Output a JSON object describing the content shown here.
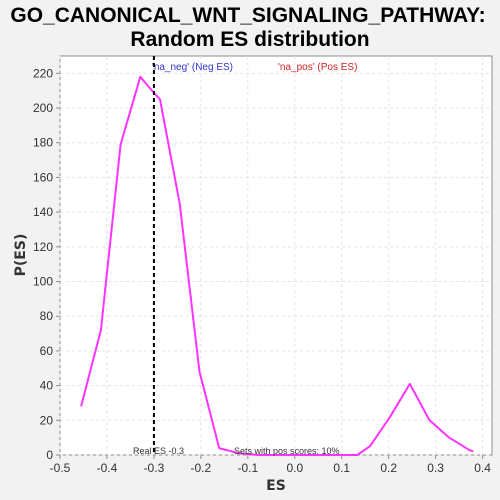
{
  "chart_data": {
    "type": "line",
    "title_lines": [
      "GO_CANONICAL_WNT_SIGNALING_PATHWAY:",
      "Random ES distribution"
    ],
    "xlabel": "ES",
    "ylabel": "P(ES)",
    "xlim": [
      -0.5,
      0.42
    ],
    "ylim": [
      0,
      230
    ],
    "xticks": [
      -0.5,
      -0.4,
      -0.3,
      -0.2,
      -0.1,
      0.0,
      0.1,
      0.2,
      0.3,
      0.4
    ],
    "xtick_labels": [
      "-0.5",
      "-0.4",
      "-0.3",
      "-0.2",
      "-0.1",
      "0.0",
      "0.1",
      "0.2",
      "0.3",
      "0.4"
    ],
    "yticks": [
      0,
      20,
      40,
      60,
      80,
      100,
      120,
      140,
      160,
      180,
      200,
      220
    ],
    "grid": true,
    "legend_position": "top-center",
    "legend": [
      {
        "label": "'na_neg' (Neg ES)",
        "color": "#3333cc"
      },
      {
        "label": "'na_pos' (Pos ES)",
        "color": "#cc2222"
      }
    ],
    "series": [
      {
        "color": "#ff33ff",
        "x": [
          -0.455,
          -0.413,
          -0.371,
          -0.329,
          -0.307,
          -0.287,
          -0.245,
          -0.203,
          -0.161,
          -0.119,
          -0.077,
          -0.035,
          0.007,
          0.049,
          0.091,
          0.133,
          0.16,
          0.203,
          0.245,
          0.287,
          0.329,
          0.371,
          0.38
        ],
        "y": [
          28,
          72,
          179,
          218,
          211,
          205,
          145,
          48,
          4,
          1,
          0,
          0,
          0,
          0,
          0,
          0,
          5,
          22,
          41,
          20,
          10,
          3,
          2
        ]
      }
    ],
    "vline": {
      "x": -0.3,
      "label": "Real ES -0.3",
      "color": "#000000"
    },
    "annotations": [
      {
        "text": "Sets with pos scores: 10%"
      }
    ]
  }
}
